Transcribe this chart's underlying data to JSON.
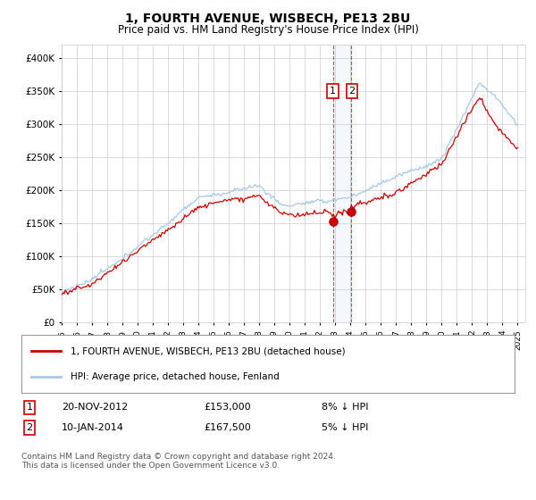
{
  "title": "1, FOURTH AVENUE, WISBECH, PE13 2BU",
  "subtitle": "Price paid vs. HM Land Registry's House Price Index (HPI)",
  "ylim": [
    0,
    420000
  ],
  "yticks": [
    0,
    50000,
    100000,
    150000,
    200000,
    250000,
    300000,
    350000,
    400000
  ],
  "hpi_color": "#a8c8e8",
  "price_color": "#cc0000",
  "point1_x": 2012.875,
  "point1_y": 153000,
  "point2_x": 2014.04,
  "point2_y": 167500,
  "legend_line1": "1, FOURTH AVENUE, WISBECH, PE13 2BU (detached house)",
  "legend_line2": "HPI: Average price, detached house, Fenland",
  "footnote": "Contains HM Land Registry data © Crown copyright and database right 2024.\nThis data is licensed under the Open Government Licence v3.0.",
  "background_color": "#ffffff",
  "grid_color": "#cccccc",
  "xmin": 1995,
  "xmax": 2025
}
